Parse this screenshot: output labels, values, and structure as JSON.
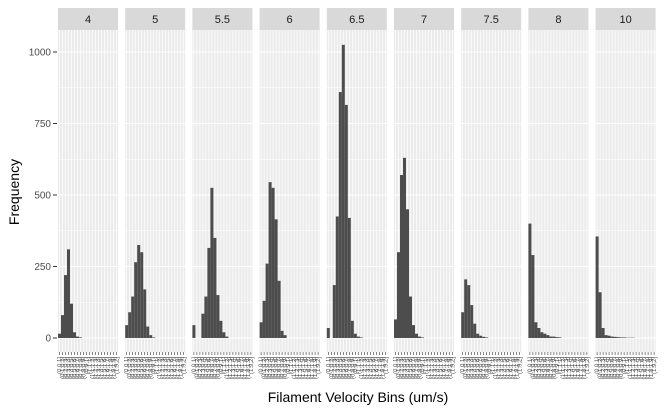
{
  "chart_data": {
    "type": "bar",
    "facet_by": "condition",
    "facets": [
      "4",
      "5",
      "5.5",
      "6",
      "6.5",
      "7",
      "7.5",
      "8",
      "10"
    ],
    "bins": [
      "(0,0.1]",
      "(0.1,0.2]",
      "(0.2,0.3]",
      "(0.3,0.4]",
      "(0.4,0.5]",
      "(0.5,0.6]",
      "(0.6,0.7]",
      "(0.7,0.8]",
      "(0.8,0.9]",
      "(0.9,1]",
      "(1,1.1]",
      "(1.1,1.2]",
      "(1.2,1.3]",
      "(1.3,1.4]",
      "(1.4,1.5]",
      "(1.5,1.6]",
      "(1.6,1.7]",
      "(1.7,1.8]",
      "(1.8,1.9]",
      "(1.9,2]"
    ],
    "series": [
      {
        "values": [
          15,
          80,
          220,
          310,
          120,
          20,
          5,
          2,
          0,
          0,
          0,
          0,
          0,
          0,
          0,
          0,
          0,
          0,
          0,
          0
        ]
      },
      {
        "values": [
          45,
          90,
          145,
          265,
          325,
          300,
          170,
          40,
          10,
          2,
          0,
          0,
          0,
          0,
          0,
          0,
          0,
          0,
          0,
          0
        ]
      },
      {
        "values": [
          45,
          0,
          0,
          85,
          145,
          315,
          525,
          350,
          150,
          60,
          20,
          5,
          0,
          0,
          0,
          0,
          0,
          0,
          0,
          0
        ]
      },
      {
        "values": [
          55,
          130,
          260,
          545,
          525,
          415,
          200,
          25,
          10,
          0,
          0,
          0,
          0,
          0,
          0,
          0,
          0,
          0,
          0,
          0
        ]
      },
      {
        "values": [
          35,
          0,
          185,
          425,
          860,
          1025,
          815,
          420,
          60,
          15,
          5,
          2,
          0,
          0,
          0,
          0,
          0,
          0,
          0,
          0
        ]
      },
      {
        "values": [
          65,
          300,
          570,
          630,
          450,
          145,
          45,
          15,
          5,
          2,
          0,
          0,
          0,
          0,
          0,
          0,
          0,
          0,
          0,
          0
        ]
      },
      {
        "values": [
          90,
          205,
          185,
          115,
          50,
          15,
          8,
          4,
          2,
          0,
          0,
          0,
          0,
          0,
          0,
          0,
          0,
          0,
          0,
          0
        ]
      },
      {
        "values": [
          400,
          290,
          55,
          35,
          20,
          15,
          10,
          5,
          5,
          3,
          2,
          0,
          0,
          0,
          0,
          0,
          0,
          0,
          0,
          0
        ]
      },
      {
        "values": [
          355,
          160,
          35,
          10,
          8,
          5,
          4,
          3,
          2,
          2,
          1,
          1,
          1,
          0,
          0,
          0,
          0,
          0,
          0,
          0
        ]
      }
    ],
    "xlabel": "Filament Velocity Bins (um/s)",
    "ylabel": "Frequency",
    "ylim": [
      0,
      1080
    ],
    "yticks": [
      0,
      250,
      500,
      750,
      1000
    ],
    "grid": true,
    "bar_color": "#4d4d4d",
    "panel_bg": "#ebebeb",
    "strip_bg": "#d9d9d9",
    "grid_color": "#ffffff"
  }
}
